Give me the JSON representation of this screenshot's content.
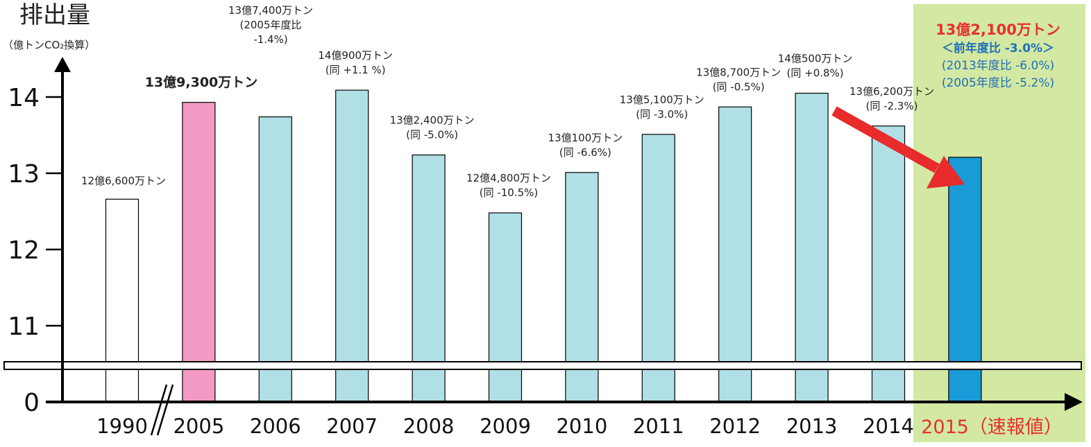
{
  "chart_data": {
    "type": "bar",
    "title": "",
    "ylabel": "排出量",
    "ylabel_unit": "（億トンCO₂換算）",
    "ylim": [
      11,
      14.5
    ],
    "y_ticks": [
      0,
      11,
      12,
      13,
      14
    ],
    "axis_break": true,
    "grid": false,
    "categories": [
      "1990",
      "2005",
      "2006",
      "2007",
      "2008",
      "2009",
      "2010",
      "2011",
      "2012",
      "2013",
      "2014",
      "2015（速報値）"
    ],
    "values": [
      12.66,
      13.93,
      13.74,
      14.09,
      13.24,
      12.48,
      13.01,
      13.51,
      13.87,
      14.05,
      13.62,
      13.21
    ],
    "bar_colors": [
      "#ffffff",
      "#f39ac4",
      "#b0e0e6",
      "#b0e0e6",
      "#b0e0e6",
      "#b0e0e6",
      "#b0e0e6",
      "#b0e0e6",
      "#b0e0e6",
      "#b0e0e6",
      "#b0e0e6",
      "#1a9ad6"
    ],
    "labels": [
      [
        "12億6,600万トン"
      ],
      [
        "13億9,300万トン"
      ],
      [
        "13億7,400万トン",
        "(2005年度比",
        "-1.4%)"
      ],
      [
        "14億900万トン",
        "(同 +1.1 %)"
      ],
      [
        "13億2,400万トン",
        "(同 -5.0%)"
      ],
      [
        "12億4,800万トン",
        "(同 -10.5%)"
      ],
      [
        "13億100万トン",
        "(同 -6.6%)"
      ],
      [
        "13億5,100万トン",
        "(同 -3.0%)"
      ],
      [
        "13億8,700万トン",
        "(同 -0.5%)"
      ],
      [
        "14億500万トン",
        "(同 +0.8%)"
      ],
      [
        "13億6,200万トン",
        "(同 -2.3%)"
      ],
      [
        "13億2,100万トン",
        "＜前年度比 -3.0%＞",
        "(2013年度比 -6.0%)",
        "(2005年度比 -5.2%)"
      ]
    ],
    "colors": {
      "highlight_bg": "#d3e8a3",
      "highlight_red": "#e8302a",
      "highlight_blue": "#1f6fb8",
      "arrow": "#e82b2b"
    }
  }
}
